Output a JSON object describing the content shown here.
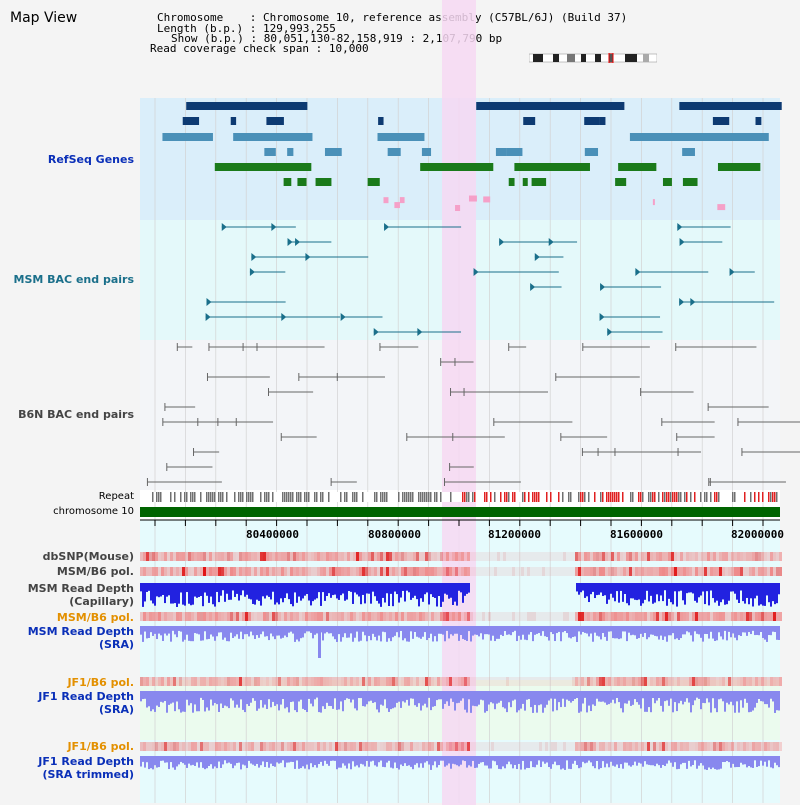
{
  "header": {
    "title": "Map View",
    "info": {
      "chromosome_key": "Chromosome",
      "chromosome_val": "Chromosome 10, reference assembly (C57BL/6J) (Build 37)",
      "length_key": "Length (b.p.)",
      "length_val": "129,993,255",
      "show_key": "Show (b.p.)",
      "show_val": "80,051,130-82,158,919 : 2,107,790 bp",
      "coverage_key": "Read coverage check span",
      "coverage_val": "10,000"
    }
  },
  "tracks": {
    "refseq": "RefSeq Genes",
    "msm_bac": "MSM BAC end pairs",
    "b6n_bac": "B6N BAC end pairs",
    "repeat": "Repeat",
    "chromosome": "chromosome 10",
    "dbsnp": "dbSNP(Mouse)",
    "msm_pol": "MSM/B6 pol.",
    "msm_depth_cap_1": "MSM Read Depth",
    "msm_depth_cap_2": "(Capillary)",
    "msm_pol2": "MSM/B6 pol.",
    "msm_depth_sra_1": "MSM Read Depth",
    "msm_depth_sra_2": "(SRA)",
    "jf1_pol": "JF1/B6 pol.",
    "jf1_depth_1": "JF1 Read Depth",
    "jf1_depth_2": "(SRA)",
    "jf1_pol2": "JF1/B6 pol.",
    "jf1_trim_1": "JF1 Read Depth",
    "jf1_trim_2": "(SRA trimmed)"
  },
  "axis": {
    "ticks": [
      "80400000",
      "80800000",
      "81200000",
      "81600000",
      "82000000"
    ]
  },
  "colors": {
    "refseq_bg": "#daeefa",
    "bac_bg": "#e4f9fa",
    "b6n_bg": "#f3f5f8",
    "highlight": "#f6d8f2",
    "chromosome_bar": "#006400",
    "gene_navy": "#0d3a72",
    "gene_steel": "#4a90b8",
    "gene_green": "#1a7a1a",
    "bac_line": "#1a6f8a",
    "b6n_line": "#666666",
    "snp": "#ee8a8a",
    "depth_blue": "#2222e0",
    "depth_light": "#8888ee"
  }
}
